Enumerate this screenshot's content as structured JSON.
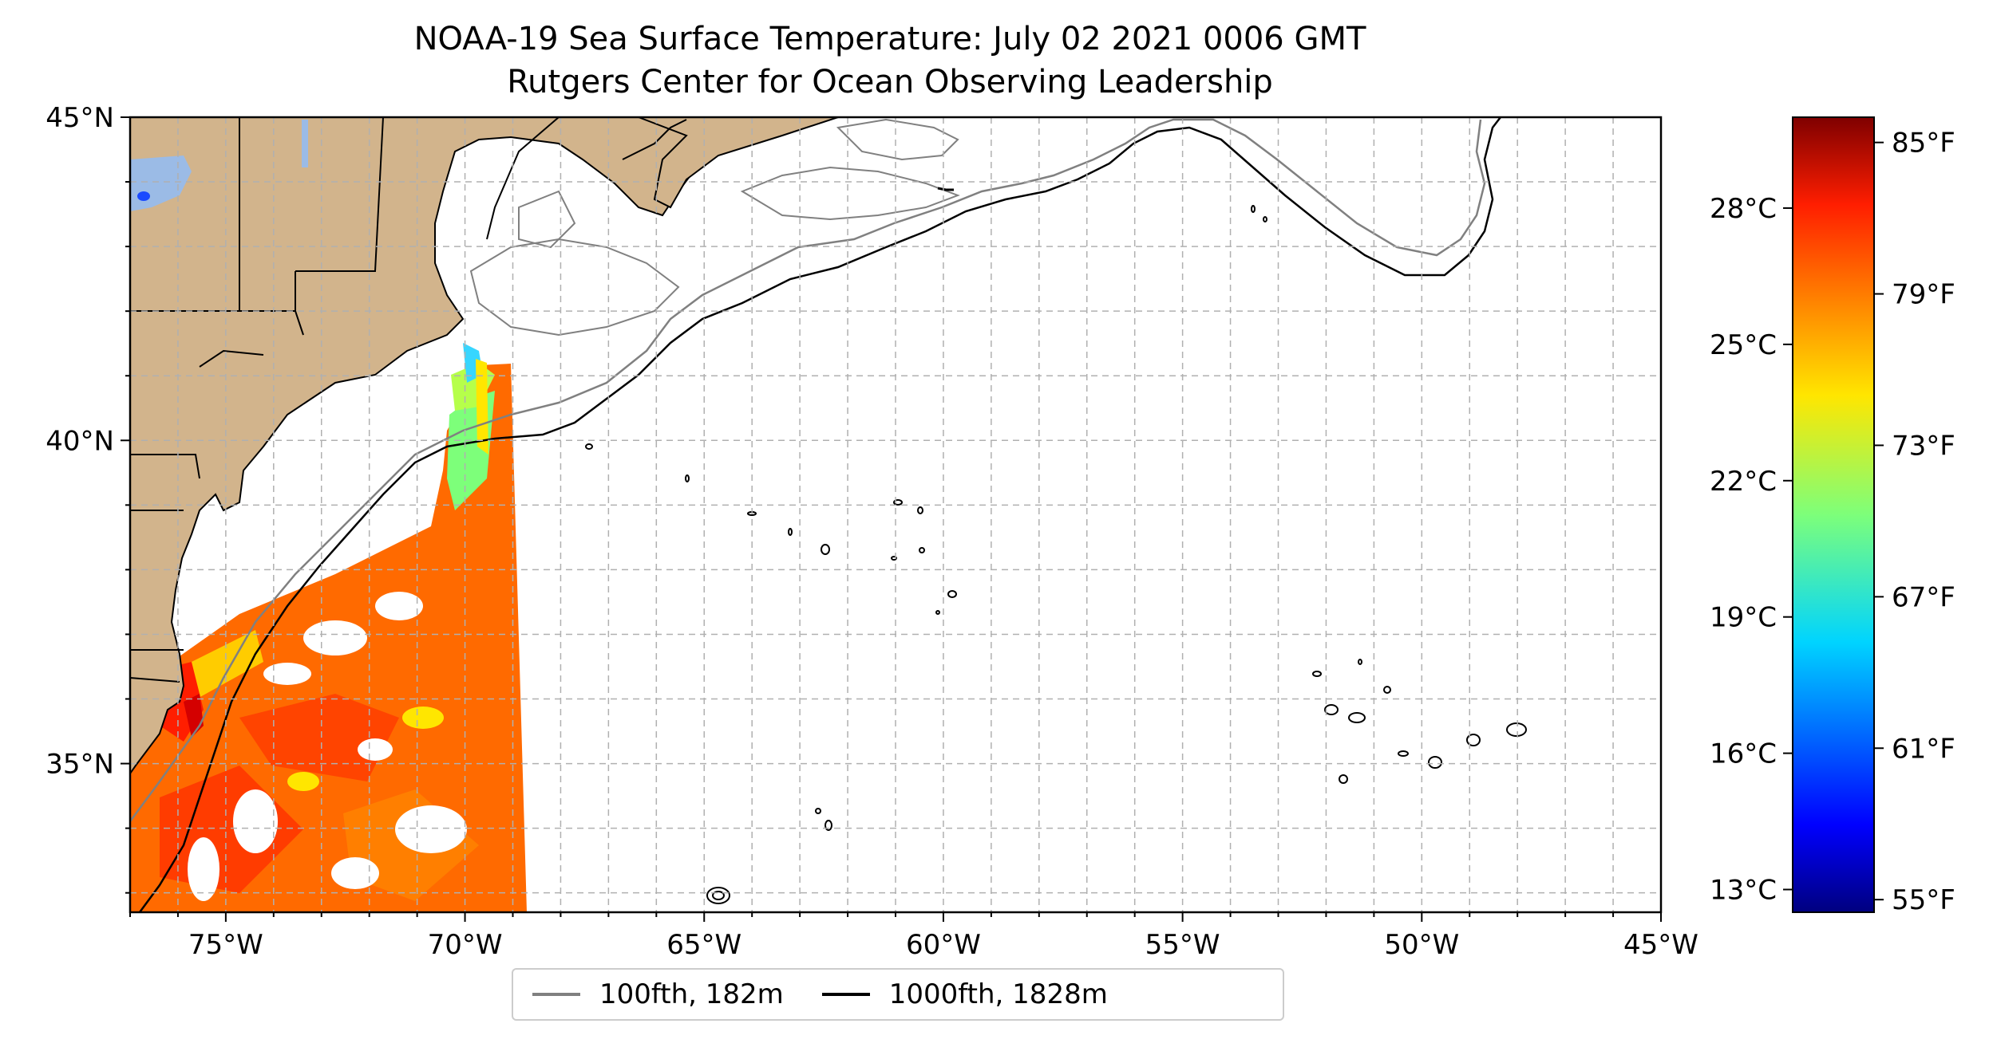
{
  "title": {
    "line1": "NOAA-19 Sea Surface Temperature: July 02 2021 0006 GMT",
    "line2": "Rutgers Center for Ocean Observing Leadership"
  },
  "map": {
    "extent": {
      "lon": [
        -77,
        -45
      ],
      "lat": [
        32.7,
        45
      ]
    },
    "x_ticks": [
      "75°W",
      "70°W",
      "65°W",
      "60°W",
      "55°W",
      "50°W",
      "45°W"
    ],
    "y_ticks": [
      "45°N",
      "40°N",
      "35°N"
    ],
    "gridlines": true,
    "land_color": "#d2b48c",
    "lake_color": "#9bbbe6"
  },
  "legend": {
    "items": [
      {
        "label": "100fth, 182m",
        "color": "#808080"
      },
      {
        "label": "1000fth, 1828m",
        "color": "#000000"
      }
    ]
  },
  "colorbar": {
    "colormap": "jet",
    "range_c": [
      12.5,
      30
    ],
    "celsius_ticks": [
      "28°C",
      "25°C",
      "22°C",
      "19°C",
      "16°C",
      "13°C"
    ],
    "fahrenheit_ticks": [
      "85°F",
      "79°F",
      "73°F",
      "67°F",
      "61°F",
      "55°F"
    ]
  }
}
